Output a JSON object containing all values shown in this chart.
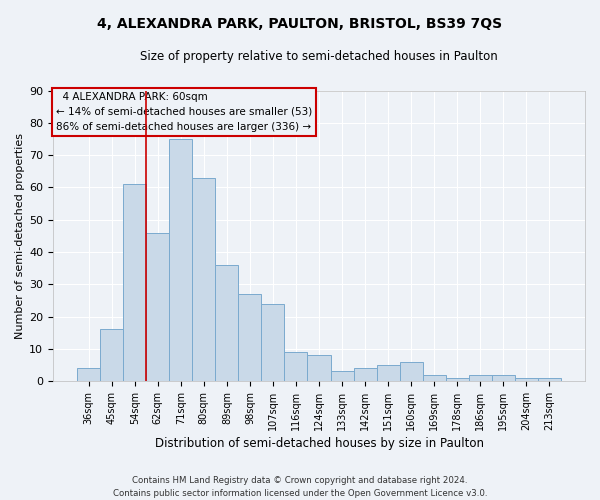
{
  "title": "4, ALEXANDRA PARK, PAULTON, BRISTOL, BS39 7QS",
  "subtitle": "Size of property relative to semi-detached houses in Paulton",
  "xlabel": "Distribution of semi-detached houses by size in Paulton",
  "ylabel": "Number of semi-detached properties",
  "categories": [
    "36sqm",
    "45sqm",
    "54sqm",
    "62sqm",
    "71sqm",
    "80sqm",
    "89sqm",
    "98sqm",
    "107sqm",
    "116sqm",
    "124sqm",
    "133sqm",
    "142sqm",
    "151sqm",
    "160sqm",
    "169sqm",
    "178sqm",
    "186sqm",
    "195sqm",
    "204sqm",
    "213sqm"
  ],
  "values": [
    4,
    16,
    61,
    46,
    75,
    63,
    36,
    27,
    24,
    9,
    8,
    3,
    4,
    5,
    6,
    2,
    1,
    2,
    2,
    1,
    1
  ],
  "bar_color": "#c9d9e8",
  "bar_edge_color": "#7aaace",
  "property_label": "4 ALEXANDRA PARK: 60sqm",
  "smaller_pct": "14% of semi-detached houses are smaller (53)",
  "larger_pct": "86% of semi-detached houses are larger (336)",
  "vline_color": "#cc0000",
  "box_edge_color": "#cc0000",
  "ylim": [
    0,
    90
  ],
  "yticks": [
    0,
    10,
    20,
    30,
    40,
    50,
    60,
    70,
    80,
    90
  ],
  "footer1": "Contains HM Land Registry data © Crown copyright and database right 2024.",
  "footer2": "Contains public sector information licensed under the Open Government Licence v3.0.",
  "background_color": "#eef2f7",
  "grid_color": "#ffffff"
}
